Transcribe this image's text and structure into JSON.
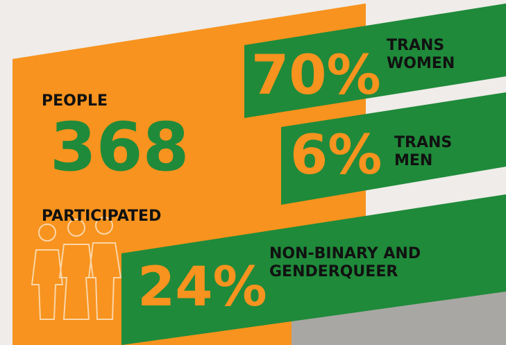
{
  "people": {
    "top_label": "PEOPLE",
    "count": "368",
    "bottom_label": "PARTICIPATED"
  },
  "stats": [
    {
      "percent": "70%",
      "label_lines": [
        "TRANS",
        "WOMEN"
      ]
    },
    {
      "percent": "6%",
      "label_lines": [
        "TRANS",
        "MEN"
      ]
    },
    {
      "percent": "24%",
      "label_lines": [
        "NON-BINARY AND",
        "GENDERQUEER"
      ]
    }
  ]
}
